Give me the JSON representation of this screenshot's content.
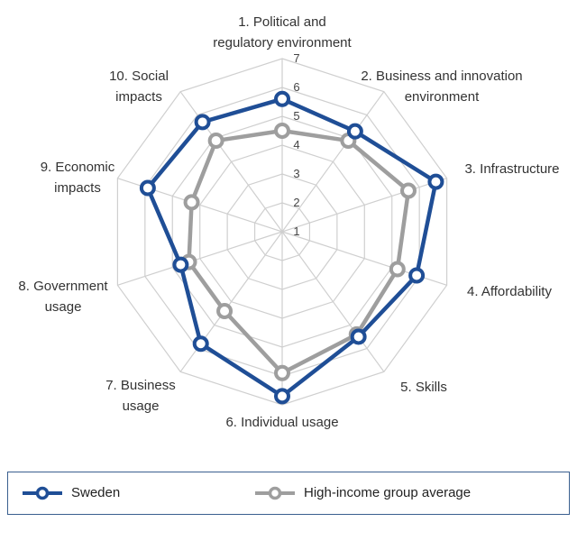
{
  "chart_data": {
    "type": "radar",
    "axes": [
      "1. Political and|regulatory environment",
      "2. Business and innovation|environment",
      "3. Infrastructure",
      "4. Affordability",
      "5. Skills",
      "6. Individual usage",
      "7. Business|usage",
      "8. Government|usage",
      "9. Economic|impacts",
      "10. Social|impacts"
    ],
    "ticks": [
      1,
      2,
      3,
      4,
      5,
      6,
      7
    ],
    "range": [
      1,
      7
    ],
    "grid": true,
    "series": [
      {
        "name": "Sweden",
        "color": "#1f4e96",
        "values": [
          5.6,
          5.3,
          6.6,
          5.9,
          5.5,
          6.7,
          5.8,
          4.7,
          5.9,
          5.7
        ]
      },
      {
        "name": "High-income group average",
        "color": "#9e9e9e",
        "values": [
          4.5,
          4.9,
          5.6,
          5.2,
          5.4,
          5.9,
          4.4,
          4.4,
          4.3,
          4.9
        ]
      }
    ]
  }
}
